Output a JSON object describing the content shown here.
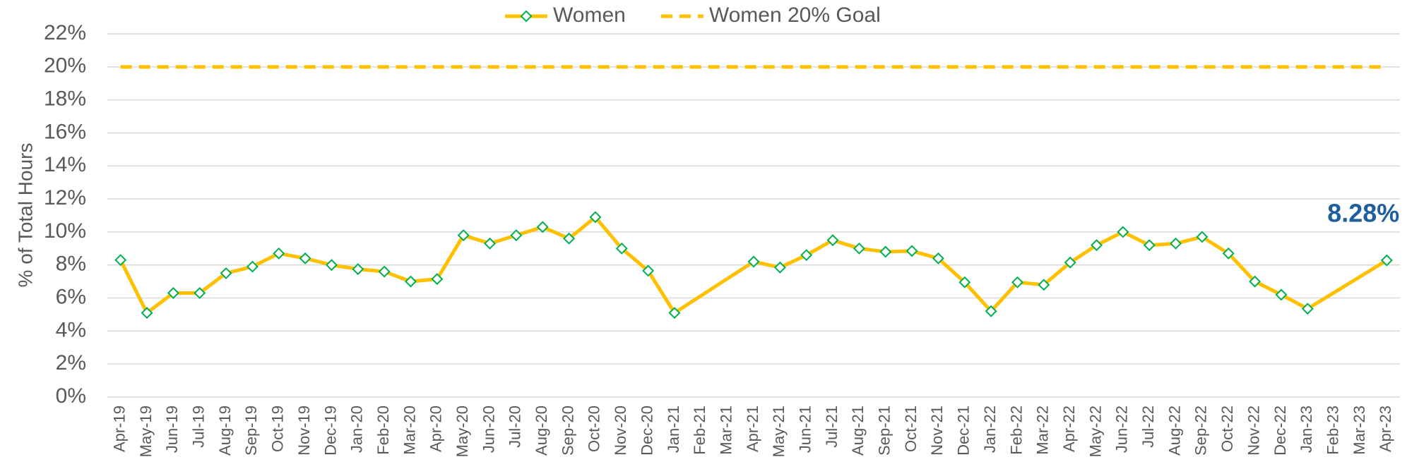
{
  "chart_data": {
    "type": "line",
    "ylabel": "% of Total Hours",
    "categories": [
      "Apr-19",
      "May-19",
      "Jun-19",
      "Jul-19",
      "Aug-19",
      "Sep-19",
      "Oct-19",
      "Nov-19",
      "Dec-19",
      "Jan-20",
      "Feb-20",
      "Mar-20",
      "Apr-20",
      "May-20",
      "Jun-20",
      "Jul-20",
      "Aug-20",
      "Sep-20",
      "Oct-20",
      "Nov-20",
      "Dec-20",
      "Jan-21",
      "Feb-21",
      "Mar-21",
      "Apr-21",
      "May-21",
      "Jun-21",
      "Jul-21",
      "Aug-21",
      "Sep-21",
      "Oct-21",
      "Nov-21",
      "Dec-21",
      "Jan-22",
      "Feb-22",
      "Mar-22",
      "Apr-22",
      "May-22",
      "Jun-22",
      "Jul-22",
      "Aug-22",
      "Sep-22",
      "Oct-22",
      "Nov-22",
      "Dec-22",
      "Jan-23",
      "Feb-23",
      "Mar-23",
      "Apr-23"
    ],
    "series": [
      {
        "name": "Women",
        "color": "#ffc000",
        "marker_color": "#00b050",
        "values": [
          8.3,
          5.1,
          6.3,
          6.3,
          7.5,
          7.9,
          8.7,
          8.4,
          8.0,
          7.75,
          7.6,
          7.0,
          7.15,
          9.8,
          9.3,
          9.8,
          10.3,
          9.6,
          10.9,
          9.0,
          7.65,
          5.1,
          null,
          null,
          8.2,
          7.85,
          8.6,
          9.5,
          9.0,
          8.8,
          8.85,
          8.4,
          6.95,
          5.2,
          6.95,
          6.8,
          8.15,
          9.2,
          10.0,
          9.2,
          9.3,
          9.7,
          8.7,
          7.0,
          6.2,
          5.35,
          null,
          null,
          8.28
        ],
        "value_labels": [
          null,
          null,
          null,
          null,
          null,
          null,
          null,
          null,
          null,
          null,
          null,
          null,
          null,
          null,
          null,
          null,
          null,
          null,
          null,
          null,
          null,
          null,
          null,
          null,
          null,
          null,
          null,
          null,
          null,
          null,
          null,
          null,
          null,
          null,
          null,
          null,
          null,
          null,
          null,
          null,
          null,
          null,
          null,
          null,
          null,
          null,
          null,
          null,
          "8.28%"
        ],
        "label_color": "#1f5fa0"
      },
      {
        "name": "Women 20% Goal",
        "color": "#ffc000",
        "dashed": true,
        "values": [
          20,
          20,
          20,
          20,
          20,
          20,
          20,
          20,
          20,
          20,
          20,
          20,
          20,
          20,
          20,
          20,
          20,
          20,
          20,
          20,
          20,
          20,
          20,
          20,
          20,
          20,
          20,
          20,
          20,
          20,
          20,
          20,
          20,
          20,
          20,
          20,
          20,
          20,
          20,
          20,
          20,
          20,
          20,
          20,
          20,
          20,
          20,
          20,
          20
        ]
      }
    ],
    "ylim": [
      0,
      22
    ],
    "yticks": [
      {
        "value": 0,
        "label": "0%"
      },
      {
        "value": 2,
        "label": "2%"
      },
      {
        "value": 4,
        "label": "4%"
      },
      {
        "value": 6,
        "label": "6%"
      },
      {
        "value": 8,
        "label": "8%"
      },
      {
        "value": 10,
        "label": "10%"
      },
      {
        "value": 12,
        "label": "12%"
      },
      {
        "value": 14,
        "label": "14%"
      },
      {
        "value": 16,
        "label": "16%"
      },
      {
        "value": 18,
        "label": "18%"
      },
      {
        "value": 20,
        "label": "20%"
      },
      {
        "value": 22,
        "label": "22%"
      }
    ],
    "grid": true,
    "legend": "top"
  }
}
